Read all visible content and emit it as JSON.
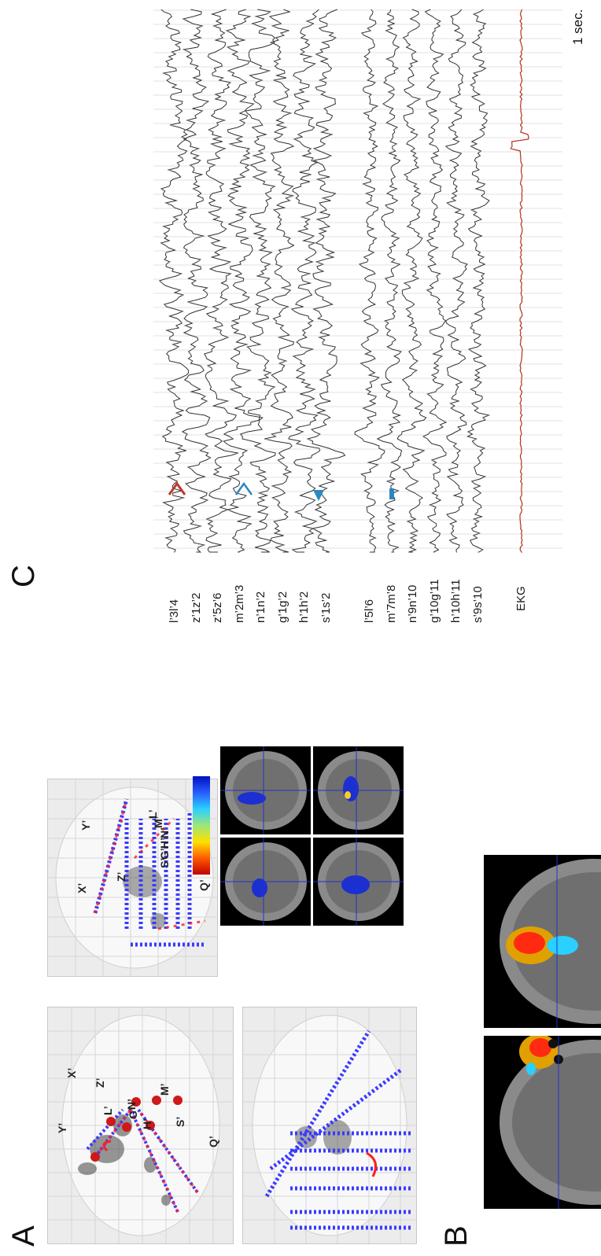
{
  "panels": {
    "a": {
      "letter": "A"
    },
    "b": {
      "letter": "B"
    },
    "c": {
      "letter": "C"
    }
  },
  "panel_a": {
    "sagittal_lead_labels": [
      "N’",
      "M’",
      "Z’",
      "L’",
      "X’",
      "G’",
      "H’",
      "S’",
      "Y’",
      "Q’"
    ],
    "coronal_lead_labels": [
      "Y’",
      "L’",
      "M’",
      "N’",
      "H’",
      "G’",
      "S’",
      "Z’",
      "X’",
      "Q’"
    ]
  },
  "panel_c": {
    "channels_group1": [
      "l’3l’4",
      "z’1z’2",
      "z’5z’6",
      "m’2m’3",
      "n’1n’2",
      "g’1g’2",
      "h’1h’2",
      "s’1s’2"
    ],
    "channels_group2": [
      "l’5l’6",
      "m’7m’8",
      "n’9n’10",
      "g’10g’11",
      "h’10h’11",
      "s’9s’10"
    ],
    "ekg_label": "EKG",
    "scale_label": "1 sec.",
    "colors": {
      "trace": "#333333",
      "ekg": "#b03020",
      "arrow_red": "#c0392b",
      "arrow_blue": "#2e86c1"
    }
  }
}
